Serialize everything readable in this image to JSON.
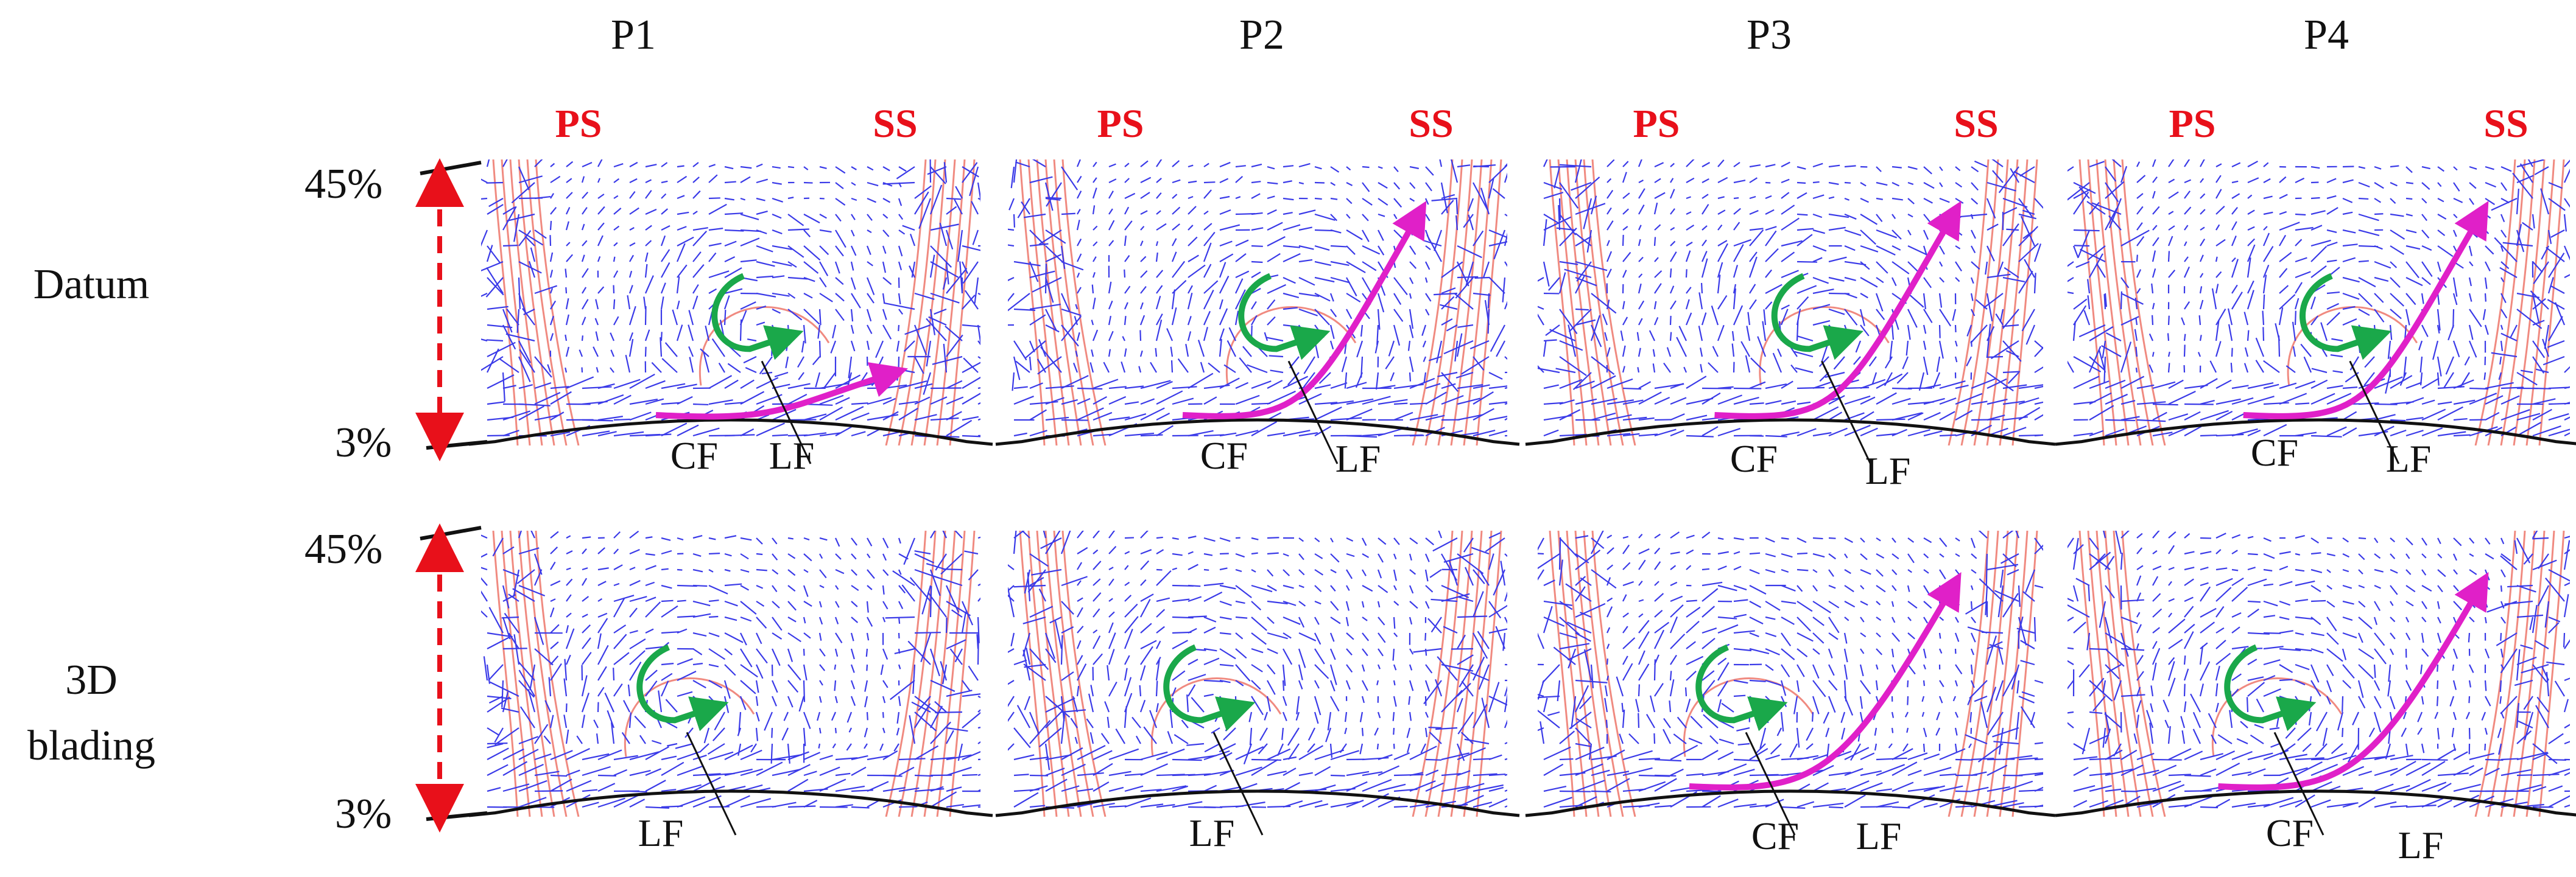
{
  "columns": [
    "P1",
    "P2",
    "P3",
    "P4"
  ],
  "rows": [
    {
      "id": "datum",
      "label_lines": [
        "Datum"
      ]
    },
    {
      "id": "blading",
      "label_lines": [
        "3D",
        "blading"
      ]
    }
  ],
  "side_labels": {
    "ps": "PS",
    "ss": "SS"
  },
  "span": {
    "top": "45%",
    "bottom": "3%"
  },
  "flow_labels": {
    "cf": "CF",
    "lf": "LF"
  },
  "panel_labels": [
    [
      [
        "CF",
        "LF"
      ],
      [
        "CF",
        "LF"
      ],
      [
        "CF",
        "LF"
      ],
      [
        "CF",
        "LF"
      ]
    ],
    [
      [
        "LF"
      ],
      [
        "LF"
      ],
      [
        "CF",
        "LF"
      ],
      [
        "CF",
        "LF"
      ]
    ]
  ],
  "colors": {
    "vectors": "#3a3ae8",
    "streamlines": "#f08a80",
    "corner_flow_arrow": "#e020c8",
    "leakage_flow_arrow": "#1aa84a",
    "span_arrow": "#e8101a",
    "side_labels": "#e8101a",
    "hub_line": "#111111"
  }
}
